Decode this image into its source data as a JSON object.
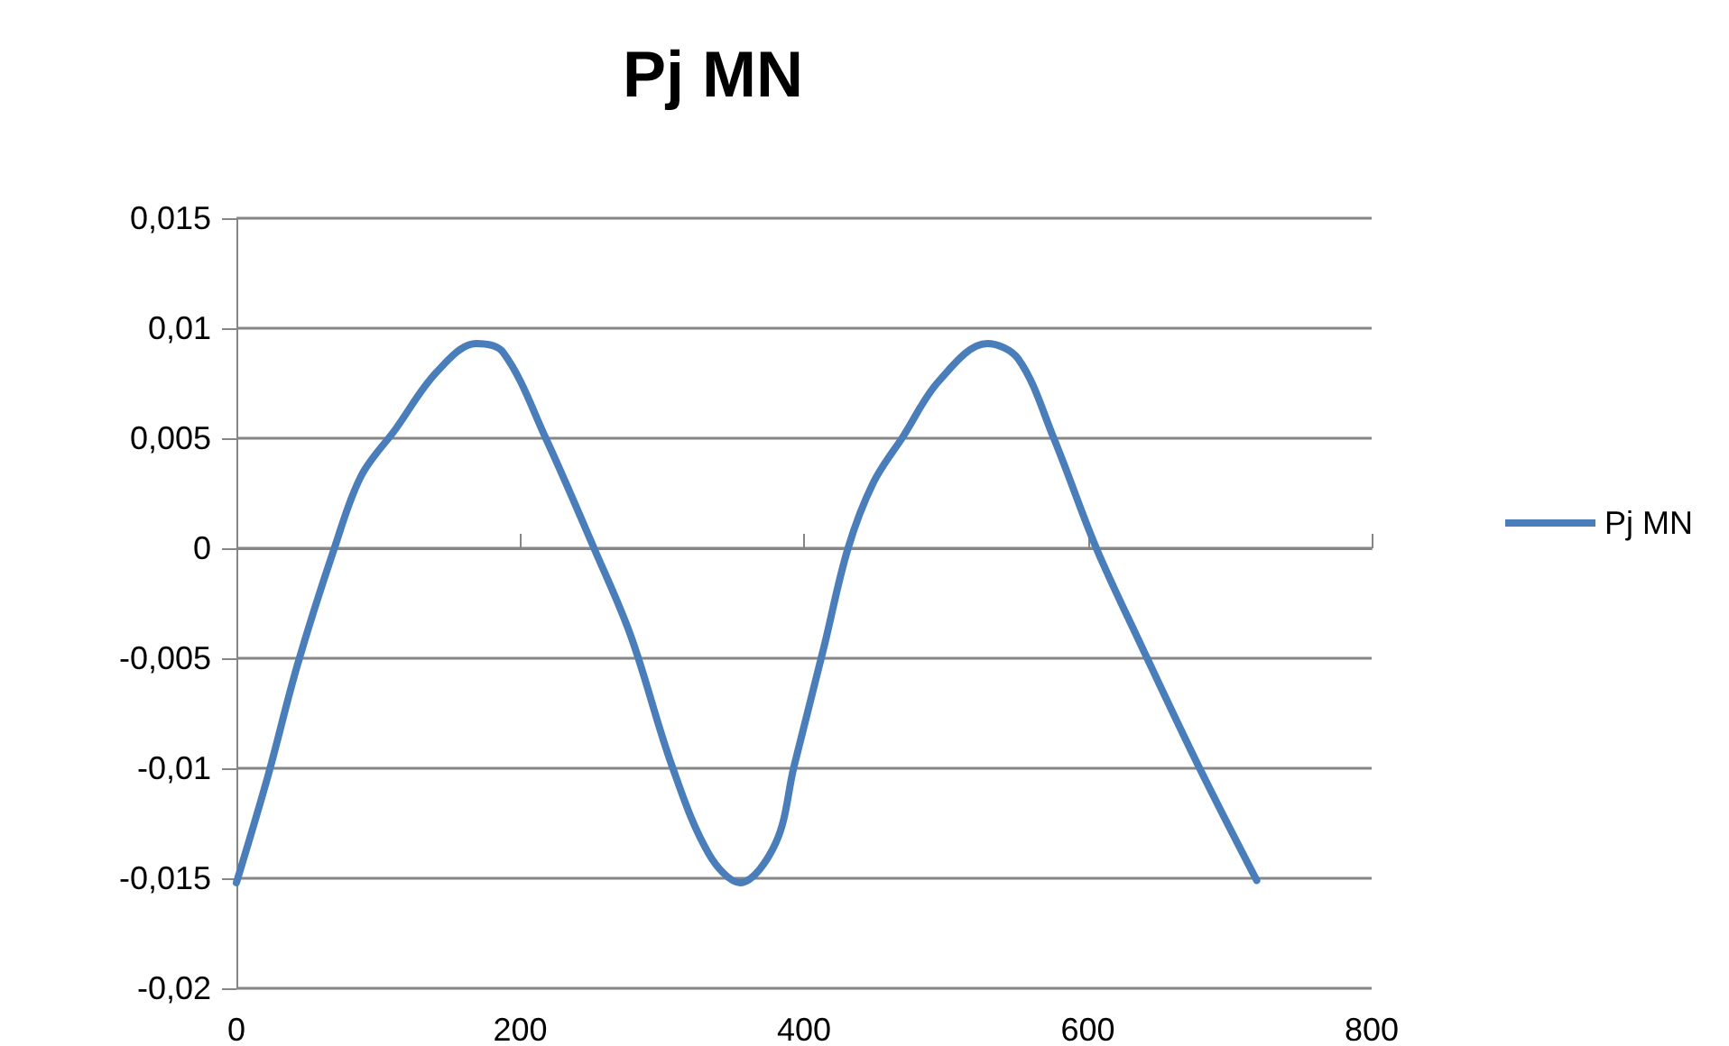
{
  "chart_data": {
    "type": "line",
    "title": "Pj MN",
    "x": [
      0,
      22,
      43,
      69,
      88,
      112,
      141,
      169,
      188,
      218,
      252,
      278,
      307,
      333,
      355,
      380,
      393,
      414,
      431,
      449,
      470,
      495,
      529,
      551,
      576,
      606,
      636,
      678,
      719
    ],
    "series": [
      {
        "name": "Pj MN",
        "color": "#4a7ebb",
        "values": [
          -0.0152,
          -0.0104,
          -0.0053,
          0,
          0.0033,
          0.0054,
          0.008,
          0.0093,
          0.0089,
          0.005,
          0,
          -0.004,
          -0.0099,
          -0.0139,
          -0.0152,
          -0.0134,
          -0.0099,
          -0.0045,
          0,
          0.003,
          0.0051,
          0.0076,
          0.0093,
          0.0086,
          0.005,
          0,
          -0.0042,
          -0.0099,
          -0.0151
        ]
      }
    ],
    "xlim": [
      0,
      800
    ],
    "xticks": [
      0,
      200,
      400,
      600,
      800
    ],
    "ylim": [
      -0.02,
      0.015
    ],
    "yticks": [
      {
        "value": -0.02,
        "label": "-0,02"
      },
      {
        "value": -0.015,
        "label": "-0,015"
      },
      {
        "value": -0.01,
        "label": "-0,01"
      },
      {
        "value": -0.005,
        "label": "-0,005"
      },
      {
        "value": 0,
        "label": "0"
      },
      {
        "value": 0.005,
        "label": "0,005"
      },
      {
        "value": 0.01,
        "label": "0,01"
      },
      {
        "value": 0.015,
        "label": "0,015"
      }
    ],
    "grid": "y",
    "legend": "right",
    "marker": "none",
    "line_style": "solid"
  }
}
